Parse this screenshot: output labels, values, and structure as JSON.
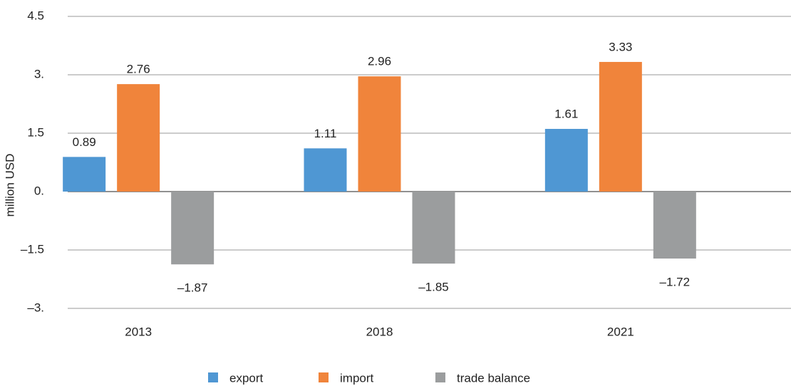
{
  "chart_data": {
    "type": "bar",
    "y_label": "million USD",
    "categories": [
      "2013",
      "2018",
      "2021"
    ],
    "series": [
      {
        "name": "export",
        "color": "#4f97d3",
        "values": [
          0.89,
          1.11,
          1.61
        ]
      },
      {
        "name": "import",
        "color": "#f0843b",
        "values": [
          2.76,
          2.96,
          3.33
        ]
      },
      {
        "name": "trade balance",
        "color": "#9b9d9e",
        "values": [
          -1.87,
          -1.85,
          -1.72
        ],
        "value_labels": [
          "–1.87",
          "–1.85",
          "–1.72"
        ]
      }
    ],
    "ylim": [
      -3,
      4.5
    ],
    "yticks": [
      4.5,
      {
        "value": 3,
        "label": "3."
      },
      1.5,
      {
        "value": 0,
        "label": "0."
      },
      {
        "value": -1.5,
        "label": "–1.5"
      },
      {
        "value": -3,
        "label": "–3."
      }
    ],
    "grid": true,
    "legend": "bottom"
  }
}
